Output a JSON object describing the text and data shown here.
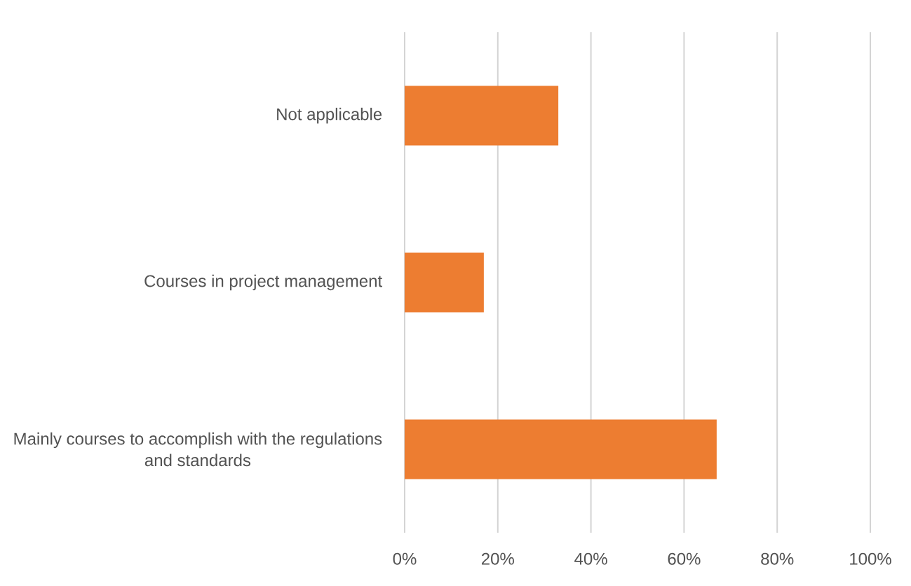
{
  "chart_data": {
    "type": "bar",
    "orientation": "horizontal",
    "categories": [
      "Not applicable",
      "Courses in project management",
      "Mainly courses to accomplish with the regulations and standards"
    ],
    "values": [
      33,
      17,
      67
    ],
    "color": "#ed7d31",
    "xlim": [
      0,
      100
    ],
    "xticks": [
      {
        "value": 0,
        "label": "0%"
      },
      {
        "value": 20,
        "label": "20%"
      },
      {
        "value": 40,
        "label": "40%"
      },
      {
        "value": 60,
        "label": "60%"
      },
      {
        "value": 80,
        "label": "80%"
      },
      {
        "value": 100,
        "label": "100%"
      }
    ],
    "grid": "x"
  }
}
